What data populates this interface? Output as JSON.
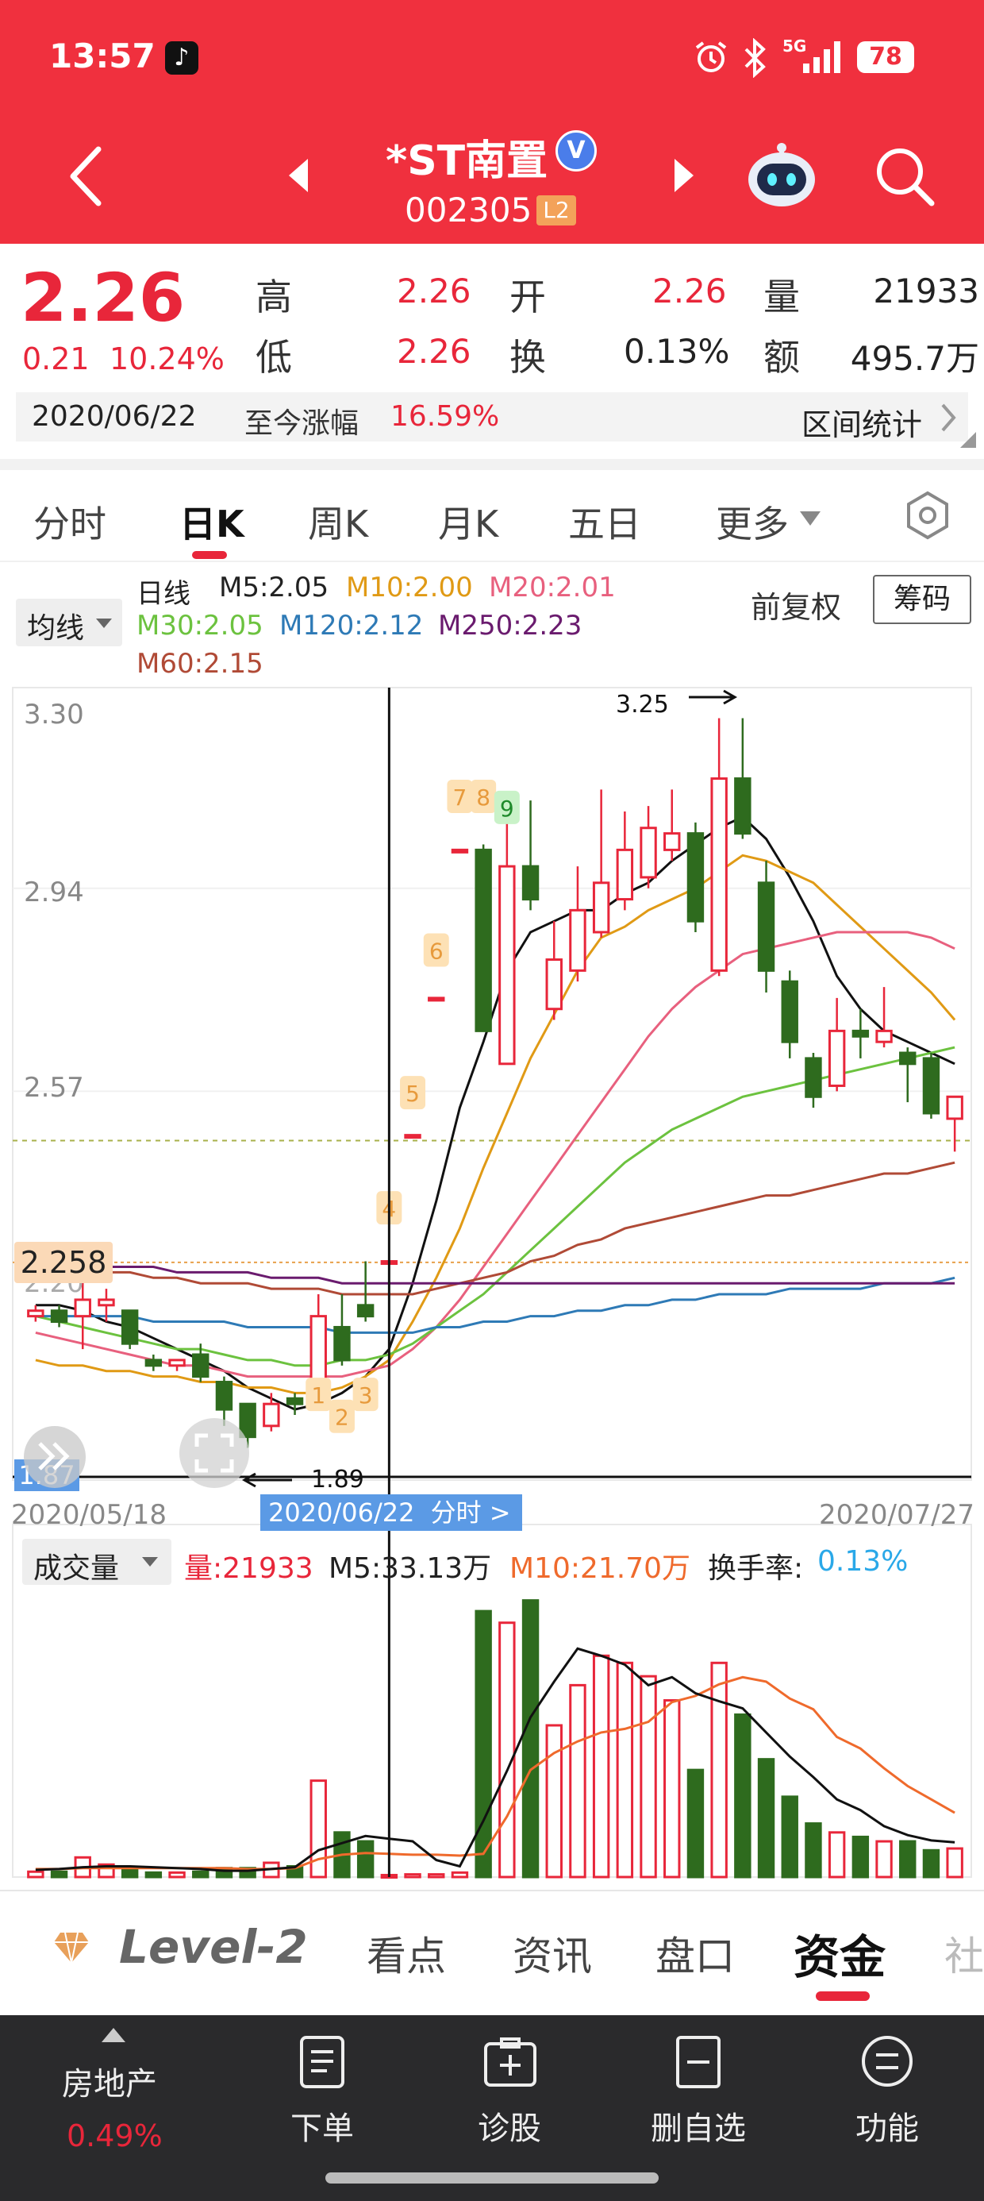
{
  "status_bar": {
    "time": "13:57",
    "network": "5G",
    "battery": "78"
  },
  "header": {
    "stock_name": "*ST南置",
    "stock_code": "002305",
    "badge": "L2",
    "verified_mark": "V"
  },
  "quote": {
    "price": "2.26",
    "change": "0.21",
    "change_pct": "10.24%",
    "high_label": "高",
    "high": "2.26",
    "low_label": "低",
    "low": "2.26",
    "open_label": "开",
    "open": "2.26",
    "turnover_label": "换",
    "turnover": "0.13%",
    "volume_label": "量",
    "volume": "21933",
    "amount_label": "额",
    "amount": "495.7万",
    "date": "2020/06/22",
    "rise_label": "至今涨幅",
    "rise": "16.59%",
    "stats_label": "区间统计"
  },
  "chart_tabs": [
    "分时",
    "日K",
    "周K",
    "月K",
    "五日",
    "更多"
  ],
  "active_tab": "日K",
  "ma_bar": {
    "indicator_label": "均线",
    "line_label": "日线",
    "m5": "M5:2.05",
    "m10": "M10:2.00",
    "m20": "M20:2.01",
    "m30": "M30:2.05",
    "m120": "M120:2.12",
    "m250": "M250:2.23",
    "m60": "M60:2.15",
    "adjust_label": "前复权",
    "chips_button": "筹码"
  },
  "kline": {
    "y_labels": [
      "3.30",
      "2.94",
      "2.57",
      "2.20",
      "1.87"
    ],
    "high_marker": "3.25",
    "low_marker": "1.89",
    "crosshair_price": "2.258",
    "date_start": "2020/05/18",
    "date_cursor": "2020/06/22",
    "cursor_suffix": "分时 >",
    "date_end": "2020/07/27",
    "signals": [
      "1",
      "2",
      "3",
      "4",
      "5",
      "6",
      "7",
      "8",
      "9"
    ]
  },
  "volume_bar": {
    "indicator_label": "成交量",
    "vol": "量:21933",
    "m5": "M5:33.13万",
    "m10": "M10:21.70万",
    "turnover_label": "换手率:",
    "turnover": "0.13%"
  },
  "bottom_tabs": {
    "level2": "Level-2",
    "items": [
      "看点",
      "资讯",
      "盘口",
      "资金",
      "社"
    ],
    "active": "资金"
  },
  "bottom_nav": {
    "sector": "房地产",
    "sector_pct": "0.49%",
    "items": [
      "下单",
      "诊股",
      "删自选",
      "功能"
    ]
  },
  "colors": {
    "red": "#e8263a",
    "green": "#2e6b1e",
    "header_bg": "#f0303e"
  },
  "chart_data": {
    "type": "candlestick",
    "x_range": [
      "2020/05/18",
      "2020/07/27"
    ],
    "ylim": [
      1.87,
      3.3
    ],
    "candles": [
      {
        "o": 2.16,
        "c": 2.17,
        "h": 2.18,
        "l": 2.15
      },
      {
        "o": 2.17,
        "c": 2.15,
        "h": 2.18,
        "l": 2.14
      },
      {
        "o": 2.16,
        "c": 2.19,
        "h": 2.23,
        "l": 2.1
      },
      {
        "o": 2.18,
        "c": 2.19,
        "h": 2.21,
        "l": 2.15
      },
      {
        "o": 2.17,
        "c": 2.11,
        "h": 2.17,
        "l": 2.1
      },
      {
        "o": 2.08,
        "c": 2.07,
        "h": 2.09,
        "l": 2.06
      },
      {
        "o": 2.07,
        "c": 2.08,
        "h": 2.08,
        "l": 2.06
      },
      {
        "o": 2.09,
        "c": 2.05,
        "h": 2.11,
        "l": 2.04
      },
      {
        "o": 2.04,
        "c": 1.99,
        "h": 2.05,
        "l": 1.96
      },
      {
        "o": 2.0,
        "c": 1.94,
        "h": 2.0,
        "l": 1.92
      },
      {
        "o": 1.96,
        "c": 2.0,
        "h": 2.02,
        "l": 1.95
      },
      {
        "o": 2.01,
        "c": 2.0,
        "h": 2.02,
        "l": 1.98
      },
      {
        "o": 2.04,
        "c": 2.16,
        "h": 2.2,
        "l": 2.02
      },
      {
        "o": 2.14,
        "c": 2.08,
        "h": 2.2,
        "l": 2.07
      },
      {
        "o": 2.18,
        "c": 2.16,
        "h": 2.26,
        "l": 2.15
      },
      {
        "o": 2.26,
        "c": 2.26,
        "h": 2.26,
        "l": 2.26
      },
      {
        "o": 2.49,
        "c": 2.49,
        "h": 2.49,
        "l": 2.49
      },
      {
        "o": 2.74,
        "c": 2.74,
        "h": 2.74,
        "l": 2.74
      },
      {
        "o": 3.01,
        "c": 3.01,
        "h": 3.01,
        "l": 3.01
      },
      {
        "o": 3.01,
        "c": 2.68,
        "h": 3.02,
        "l": 2.68
      },
      {
        "o": 2.62,
        "c": 2.98,
        "h": 3.08,
        "l": 2.62
      },
      {
        "o": 2.98,
        "c": 2.92,
        "h": 3.1,
        "l": 2.9
      },
      {
        "o": 2.72,
        "c": 2.81,
        "h": 2.88,
        "l": 2.7
      },
      {
        "o": 2.79,
        "c": 2.9,
        "h": 2.98,
        "l": 2.77
      },
      {
        "o": 2.86,
        "c": 2.95,
        "h": 3.12,
        "l": 2.85
      },
      {
        "o": 2.92,
        "c": 3.01,
        "h": 3.08,
        "l": 2.9
      },
      {
        "o": 2.96,
        "c": 3.05,
        "h": 3.09,
        "l": 2.94
      },
      {
        "o": 3.01,
        "c": 3.04,
        "h": 3.12,
        "l": 2.99
      },
      {
        "o": 3.04,
        "c": 2.88,
        "h": 3.06,
        "l": 2.86
      },
      {
        "o": 2.79,
        "c": 3.14,
        "h": 3.25,
        "l": 2.78
      },
      {
        "o": 3.14,
        "c": 3.04,
        "h": 3.25,
        "l": 3.03
      },
      {
        "o": 2.95,
        "c": 2.79,
        "h": 2.99,
        "l": 2.75
      },
      {
        "o": 2.77,
        "c": 2.66,
        "h": 2.79,
        "l": 2.63
      },
      {
        "o": 2.63,
        "c": 2.56,
        "h": 2.64,
        "l": 2.54
      },
      {
        "o": 2.58,
        "c": 2.68,
        "h": 2.74,
        "l": 2.57
      },
      {
        "o": 2.68,
        "c": 2.67,
        "h": 2.72,
        "l": 2.63
      },
      {
        "o": 2.66,
        "c": 2.68,
        "h": 2.76,
        "l": 2.65
      },
      {
        "o": 2.64,
        "c": 2.62,
        "h": 2.65,
        "l": 2.55
      },
      {
        "o": 2.63,
        "c": 2.53,
        "h": 2.64,
        "l": 2.52
      },
      {
        "o": 2.52,
        "c": 2.56,
        "h": 2.56,
        "l": 2.46
      }
    ],
    "ma": {
      "M5": [
        2.18,
        2.18,
        2.17,
        2.15,
        2.14,
        2.12,
        2.1,
        2.08,
        2.06,
        2.03,
        2.01,
        1.99,
        2.0,
        2.02,
        2.05,
        2.1,
        2.22,
        2.37,
        2.54,
        2.66,
        2.79,
        2.86,
        2.88,
        2.9,
        2.9,
        2.93,
        2.95,
        2.99,
        3.02,
        3.05,
        3.07,
        3.03,
        2.96,
        2.88,
        2.78,
        2.72,
        2.68,
        2.66,
        2.64,
        2.62
      ],
      "M10": [
        2.08,
        2.07,
        2.07,
        2.06,
        2.06,
        2.05,
        2.05,
        2.04,
        2.04,
        2.03,
        2.03,
        2.02,
        2.02,
        2.03,
        2.05,
        2.08,
        2.15,
        2.23,
        2.32,
        2.43,
        2.53,
        2.63,
        2.71,
        2.79,
        2.85,
        2.87,
        2.9,
        2.92,
        2.94,
        2.97,
        3.0,
        2.99,
        2.97,
        2.95,
        2.91,
        2.87,
        2.83,
        2.79,
        2.75,
        2.7
      ],
      "M20": [
        2.13,
        2.12,
        2.11,
        2.1,
        2.09,
        2.08,
        2.07,
        2.07,
        2.06,
        2.05,
        2.05,
        2.05,
        2.05,
        2.05,
        2.06,
        2.07,
        2.1,
        2.14,
        2.19,
        2.25,
        2.31,
        2.37,
        2.43,
        2.49,
        2.55,
        2.61,
        2.67,
        2.72,
        2.76,
        2.79,
        2.82,
        2.83,
        2.84,
        2.85,
        2.86,
        2.86,
        2.86,
        2.86,
        2.85,
        2.83
      ],
      "M30": [
        2.16,
        2.15,
        2.14,
        2.13,
        2.12,
        2.11,
        2.1,
        2.1,
        2.09,
        2.08,
        2.08,
        2.07,
        2.07,
        2.08,
        2.08,
        2.09,
        2.11,
        2.14,
        2.17,
        2.2,
        2.24,
        2.28,
        2.32,
        2.36,
        2.4,
        2.44,
        2.47,
        2.5,
        2.52,
        2.54,
        2.56,
        2.57,
        2.58,
        2.59,
        2.6,
        2.61,
        2.62,
        2.63,
        2.64,
        2.65
      ],
      "M60": [
        2.24,
        2.24,
        2.24,
        2.24,
        2.24,
        2.23,
        2.23,
        2.22,
        2.22,
        2.22,
        2.21,
        2.21,
        2.21,
        2.2,
        2.2,
        2.2,
        2.2,
        2.21,
        2.22,
        2.23,
        2.24,
        2.26,
        2.27,
        2.29,
        2.3,
        2.32,
        2.33,
        2.34,
        2.35,
        2.36,
        2.37,
        2.38,
        2.38,
        2.39,
        2.4,
        2.41,
        2.42,
        2.42,
        2.43,
        2.44
      ],
      "M120": [
        2.16,
        2.16,
        2.16,
        2.16,
        2.16,
        2.15,
        2.15,
        2.15,
        2.15,
        2.14,
        2.14,
        2.14,
        2.14,
        2.13,
        2.13,
        2.13,
        2.13,
        2.14,
        2.14,
        2.15,
        2.15,
        2.16,
        2.16,
        2.17,
        2.17,
        2.18,
        2.18,
        2.19,
        2.19,
        2.2,
        2.2,
        2.2,
        2.21,
        2.21,
        2.21,
        2.21,
        2.22,
        2.22,
        2.22,
        2.23
      ],
      "M250": [
        2.26,
        2.26,
        2.26,
        2.25,
        2.25,
        2.25,
        2.24,
        2.24,
        2.24,
        2.24,
        2.23,
        2.23,
        2.23,
        2.22,
        2.22,
        2.22,
        2.22,
        2.22,
        2.22,
        2.22,
        2.22,
        2.22,
        2.22,
        2.22,
        2.22,
        2.22,
        2.22,
        2.22,
        2.22,
        2.22,
        2.22,
        2.22,
        2.22,
        2.22,
        2.22,
        2.22,
        2.22,
        2.22,
        2.22,
        2.22
      ]
    },
    "volume": [
      0.6,
      0.6,
      2.2,
      1.4,
      1.0,
      0.5,
      0.5,
      0.6,
      1.0,
      1.0,
      1.6,
      1.2,
      10.8,
      5.0,
      4.0,
      0.22,
      0.3,
      0.3,
      0.5,
      29.8,
      28.5,
      31.0,
      17.0,
      21.5,
      24.8,
      24.0,
      22.5,
      19.8,
      12.0,
      24.0,
      18.2,
      13.2,
      9.0,
      6.0,
      5.0,
      4.5,
      4.0,
      4.0,
      3.0,
      3.2
    ],
    "volume_ma5": [
      0.8,
      0.9,
      1.1,
      1.2,
      1.2,
      1.1,
      1.0,
      0.9,
      0.7,
      0.7,
      0.9,
      1.1,
      3.0,
      3.8,
      4.6,
      4.3,
      4.0,
      1.9,
      1.2,
      6.3,
      11.9,
      17.9,
      21.9,
      25.6,
      24.8,
      23.8,
      21.5,
      22.4,
      20.6,
      19.7,
      18.9,
      16.2,
      13.5,
      11.2,
      8.7,
      7.5,
      5.7,
      4.7,
      4.1,
      3.9
    ],
    "volume_ma10": [
      0.9,
      0.9,
      1.0,
      1.0,
      1.0,
      1.0,
      1.0,
      1.0,
      1.0,
      0.9,
      0.9,
      1.0,
      2.0,
      2.5,
      2.7,
      2.6,
      2.5,
      2.5,
      2.4,
      2.6,
      6.8,
      12.0,
      13.9,
      15.2,
      16.2,
      16.6,
      17.4,
      19.6,
      20.3,
      21.6,
      22.4,
      21.9,
      20.0,
      18.8,
      15.7,
      14.4,
      12.2,
      10.2,
      8.7,
      7.2
    ]
  }
}
